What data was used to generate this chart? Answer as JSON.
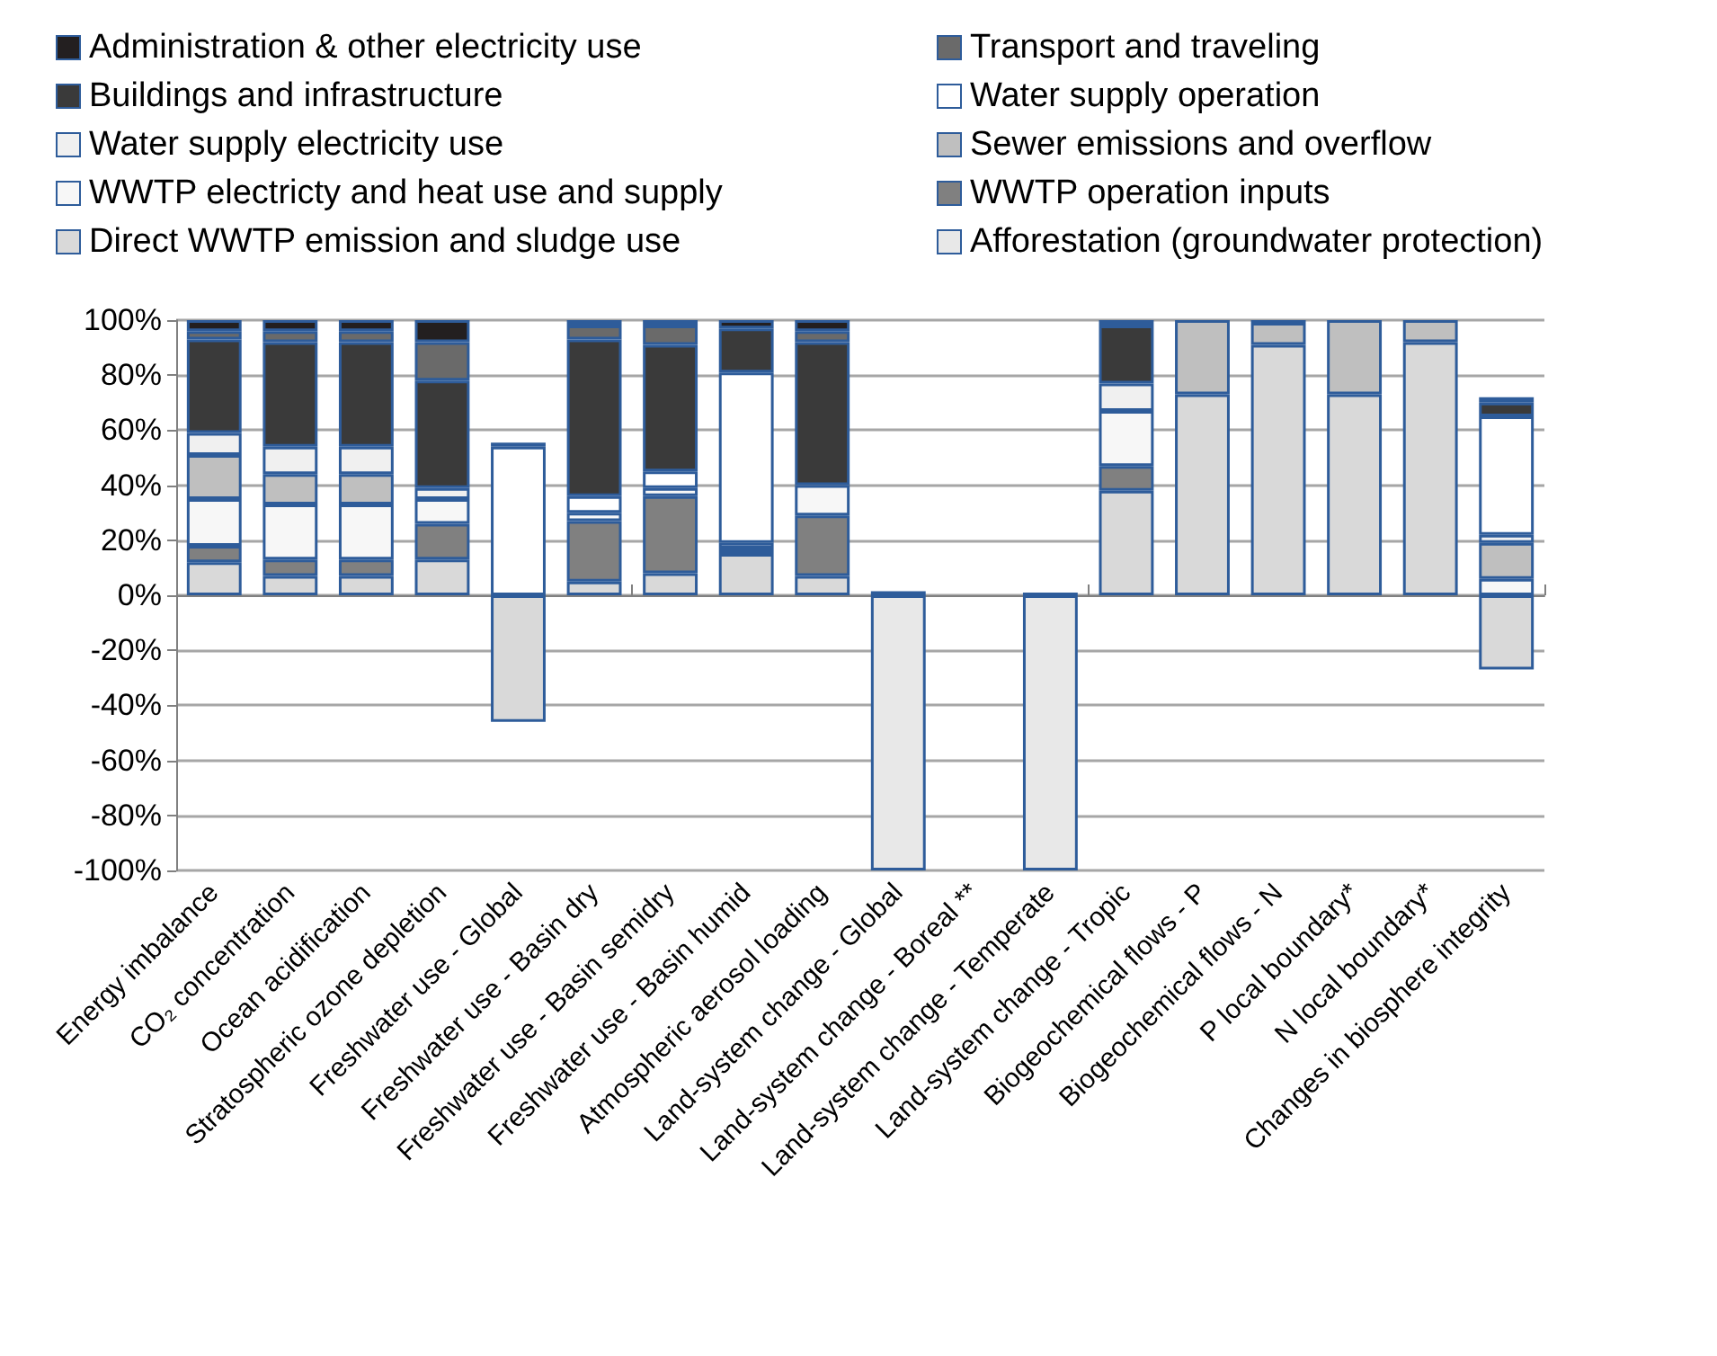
{
  "chart_data": {
    "type": "bar",
    "stacked": true,
    "legend": "top",
    "grid": "y",
    "categories": [
      "Energy imbalance",
      "CO₂ concentration",
      "Ocean acidification",
      "Stratospheric ozone depletion",
      "Freshwater use - Global",
      "Freshwater use - Basin dry",
      "Freshwater use - Basin semidry",
      "Freshwater use - Basin humid",
      "Atmospheric aerosol loading",
      "Land-system change - Global",
      "Land-system change - Boreal **",
      "Land-system change - Temperate",
      "Land-system change - Tropic",
      "Biogeochemical flows - P",
      "Biogeochemical flows - N",
      "P local boundary*",
      "N local boundary*",
      "Changes in biosphere integrity"
    ],
    "ylim": [
      -100,
      100
    ],
    "yticks": [
      {
        "value": -100,
        "label": "-100%"
      },
      {
        "value": -80,
        "label": "-80%"
      },
      {
        "value": -60,
        "label": "-60%"
      },
      {
        "value": -40,
        "label": "-40%"
      },
      {
        "value": -20,
        "label": "-20%"
      },
      {
        "value": 0,
        "label": "0%"
      },
      {
        "value": 20,
        "label": "20%"
      },
      {
        "value": 40,
        "label": "40%"
      },
      {
        "value": 60,
        "label": "60%"
      },
      {
        "value": 80,
        "label": "80%"
      },
      {
        "value": 100,
        "label": "100%"
      }
    ],
    "series": [
      {
        "name": "Afforestation (groundwater protection)",
        "color": "#e8e8e8",
        "values": [
          null,
          null,
          null,
          null,
          null,
          null,
          null,
          null,
          null,
          -100,
          null,
          -100,
          null,
          null,
          null,
          null,
          null,
          null
        ]
      },
      {
        "name": "Direct WWTP emission and sludge use",
        "color": "#d9d9d9",
        "values": [
          12,
          7,
          7,
          13,
          -46,
          5,
          8,
          15,
          7,
          null,
          null,
          null,
          38,
          73,
          91,
          73,
          92,
          -27
        ]
      },
      {
        "name": "WWTP operation inputs",
        "color": "#808080",
        "values": [
          6,
          6,
          6,
          13,
          null,
          22,
          28,
          2,
          22,
          null,
          null,
          null,
          9,
          null,
          null,
          null,
          null,
          null
        ]
      },
      {
        "name": "WWTP electricty and heat use and supply",
        "color": "#f7f7f7",
        "values": [
          17,
          20,
          20,
          9,
          null,
          3,
          3,
          2,
          11,
          null,
          null,
          null,
          20,
          null,
          null,
          null,
          null,
          6
        ]
      },
      {
        "name": "Sewer emissions and overflow",
        "color": "#bfbfbf",
        "values": [
          16,
          11,
          11,
          null,
          null,
          null,
          null,
          null,
          null,
          null,
          null,
          null,
          null,
          27,
          8,
          27,
          8,
          13
        ]
      },
      {
        "name": "Water supply electricity use",
        "color": "#f0f0f0",
        "values": [
          8,
          10,
          10,
          4,
          null,
          null,
          null,
          null,
          null,
          null,
          null,
          null,
          10,
          null,
          null,
          null,
          null,
          3
        ]
      },
      {
        "name": "Water supply operation",
        "color": "#ffffff",
        "values": [
          null,
          null,
          null,
          null,
          54,
          6,
          6,
          62,
          null,
          null,
          null,
          null,
          null,
          null,
          null,
          null,
          null,
          43
        ]
      },
      {
        "name": "Buildings and infrastructure",
        "color": "#3a3a3a",
        "values": [
          34,
          38,
          38,
          39,
          null,
          57,
          46,
          16,
          52,
          null,
          null,
          null,
          21,
          null,
          null,
          null,
          null,
          5
        ]
      },
      {
        "name": "Transport and traveling",
        "color": "#6a6a6a",
        "values": [
          3,
          4,
          4,
          14,
          null,
          5,
          7,
          null,
          4,
          null,
          null,
          null,
          null,
          null,
          null,
          null,
          null,
          null
        ]
      },
      {
        "name": "Administration & other electricity use",
        "color": "#231f20",
        "values": [
          4,
          4,
          4,
          8,
          1.5,
          2,
          2,
          3,
          4,
          1.5,
          null,
          1,
          2,
          null,
          1,
          null,
          null,
          2
        ]
      }
    ]
  }
}
